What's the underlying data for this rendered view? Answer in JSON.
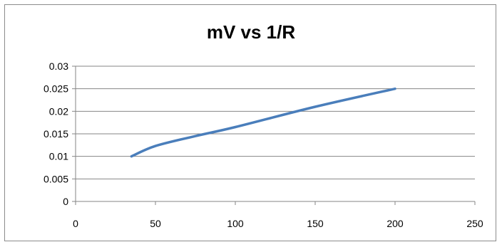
{
  "chart_data": {
    "type": "line",
    "title": "mV vs 1/R",
    "xlabel": "",
    "ylabel": "",
    "xlim": [
      0,
      250
    ],
    "ylim": [
      0,
      0.03
    ],
    "x_ticks": [
      "0",
      "50",
      "100",
      "150",
      "200",
      "250"
    ],
    "y_ticks": [
      "0",
      "0.005",
      "0.01",
      "0.015",
      "0.02",
      "0.025",
      "0.03"
    ],
    "grid": "horizontal",
    "legend": "none",
    "series": [
      {
        "x": [
          35,
          50,
          75,
          100,
          150,
          200
        ],
        "y": [
          0.01,
          0.0123,
          0.0145,
          0.0165,
          0.021,
          0.025
        ],
        "color": "#4a7ebb"
      }
    ]
  }
}
